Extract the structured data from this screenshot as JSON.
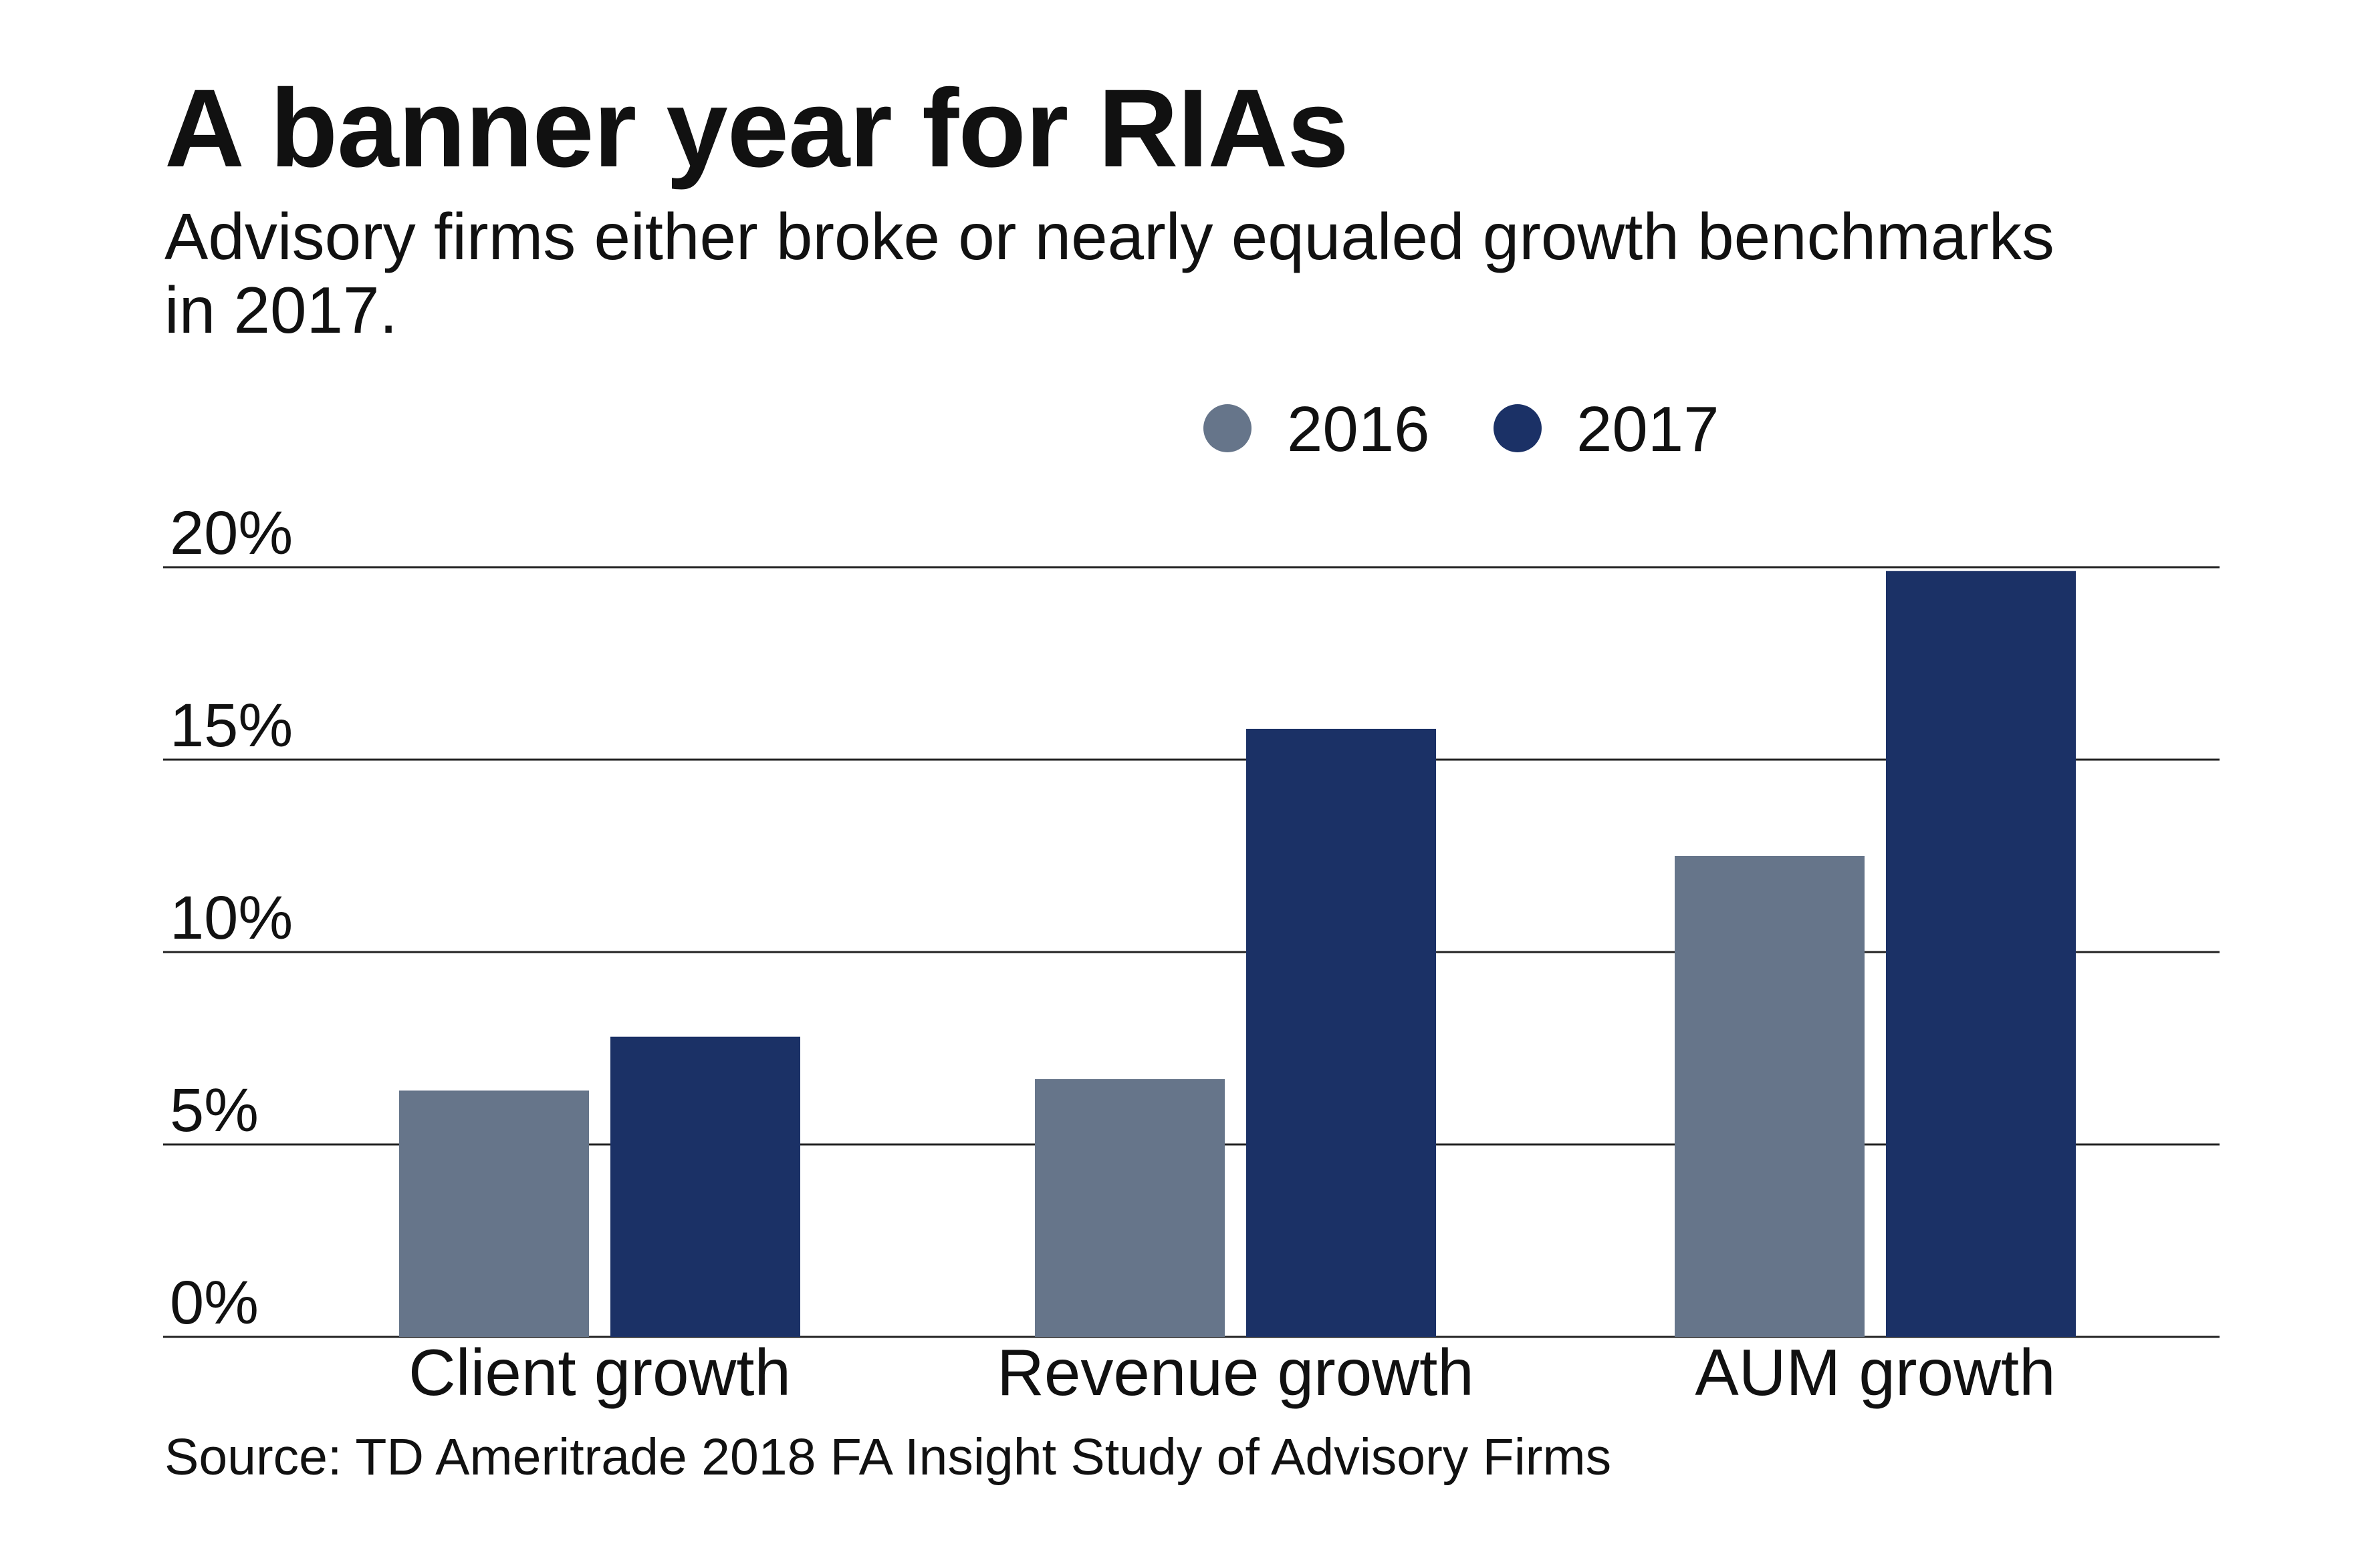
{
  "title": "A banner year for RIAs",
  "subtitle": "Advisory firms either broke or nearly equaled growth benchmarks in 2017.",
  "source": "Source: TD Ameritrade 2018 FA Insight Study of Advisory Firms",
  "colors": {
    "series_2016": "#66758a",
    "series_2017": "#1b3166",
    "gridline": "#222222",
    "text": "#111111"
  },
  "chart_data": {
    "type": "bar",
    "title": "A banner year for RIAs",
    "subtitle": "Advisory firms either broke or nearly equaled growth benchmarks in 2017.",
    "categories": [
      "Client growth",
      "Revenue growth",
      "AUM growth"
    ],
    "series": [
      {
        "name": "2016",
        "color": "#66758a",
        "values": [
          6.4,
          6.7,
          12.5
        ]
      },
      {
        "name": "2017",
        "color": "#1b3166",
        "values": [
          7.8,
          15.8,
          19.9
        ]
      }
    ],
    "y_ticks": [
      0,
      5,
      10,
      15,
      20
    ],
    "y_tick_labels": [
      "0%",
      "5%",
      "10%",
      "15%",
      "20%"
    ],
    "ylim": [
      0,
      20
    ],
    "xlabel": "",
    "ylabel": "",
    "grid": true,
    "legend_position": "top"
  }
}
